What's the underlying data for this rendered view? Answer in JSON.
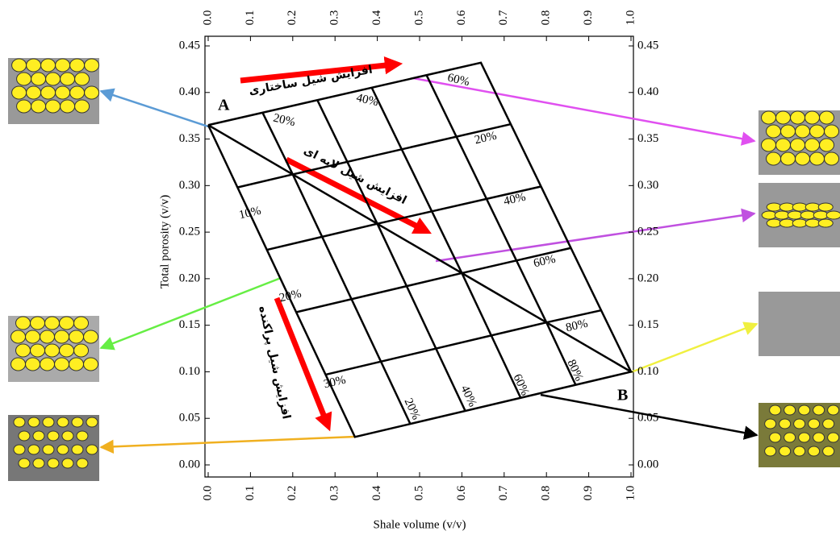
{
  "chart_data": {
    "type": "line",
    "xlabel": "Shale volume  (v/v)",
    "ylabel": "Total porosity  (v/v)",
    "xlim": [
      0,
      1
    ],
    "ylim": [
      0,
      0.45
    ],
    "xticks": [
      {
        "value": 0,
        "label": "0.0"
      },
      0.1,
      0.2,
      0.3,
      0.4,
      0.5,
      0.6,
      0.7,
      0.8,
      0.9,
      {
        "value": 1,
        "label": "1.0"
      }
    ],
    "yticks": [
      {
        "value": 0,
        "label": "0.00"
      },
      0.05,
      {
        "value": 0.1,
        "label": "0.10"
      },
      0.15,
      {
        "value": 0.2,
        "label": "0.20"
      },
      0.25,
      {
        "value": 0.3,
        "label": "0.30"
      },
      0.35,
      {
        "value": 0.4,
        "label": "0.40"
      },
      0.45
    ],
    "color": "#000000",
    "lines": [
      {
        "x": [
          0,
          0.645,
          1,
          0.347,
          0
        ],
        "y": [
          0.365,
          0.432,
          0.1,
          0.03,
          0.365
        ]
      },
      {
        "x": [
          0,
          1
        ],
        "y": [
          0.365,
          0.1
        ]
      },
      {
        "x": [
          0.2,
          0.716
        ],
        "y": [
          0.312,
          0.366
        ]
      },
      {
        "x": [
          0.4,
          0.787
        ],
        "y": [
          0.259,
          0.299
        ]
      },
      {
        "x": [
          0.6,
          0.858
        ],
        "y": [
          0.206,
          0.233
        ]
      },
      {
        "x": [
          0.8,
          0.929
        ],
        "y": [
          0.153,
          0.166
        ]
      },
      {
        "x": [
          0.129,
          0.2
        ],
        "y": [
          0.378,
          0.312
        ]
      },
      {
        "x": [
          0.258,
          0.4
        ],
        "y": [
          0.392,
          0.259
        ]
      },
      {
        "x": [
          0.387,
          0.6
        ],
        "y": [
          0.405,
          0.206
        ]
      },
      {
        "x": [
          0.516,
          0.8
        ],
        "y": [
          0.419,
          0.153
        ]
      },
      {
        "x": [
          0.2,
          0.478
        ],
        "y": [
          0.312,
          0.044
        ]
      },
      {
        "x": [
          0.4,
          0.608
        ],
        "y": [
          0.259,
          0.058
        ]
      },
      {
        "x": [
          0.6,
          0.739
        ],
        "y": [
          0.206,
          0.072
        ]
      },
      {
        "x": [
          0.8,
          0.869
        ],
        "y": [
          0.153,
          0.086
        ]
      },
      {
        "x": [
          0.069,
          0.2
        ],
        "y": [
          0.298,
          0.312
        ]
      },
      {
        "x": [
          0.139,
          0.4
        ],
        "y": [
          0.231,
          0.259
        ]
      },
      {
        "x": [
          0.208,
          0.6
        ],
        "y": [
          0.164,
          0.206
        ]
      },
      {
        "x": [
          0.278,
          0.8
        ],
        "y": [
          0.097,
          0.153
        ]
      }
    ],
    "annotations": [
      "A",
      "B",
      "20%",
      "40%",
      "60%",
      "20%",
      "40%",
      "60%",
      "80%",
      "10%",
      "20%",
      "30%",
      "20%",
      "40%",
      "60%",
      "80%",
      "افزایش شیل ساختاری",
      "افزایش شیل لایه ای",
      "افزایش شیل پراکنده"
    ]
  }
}
